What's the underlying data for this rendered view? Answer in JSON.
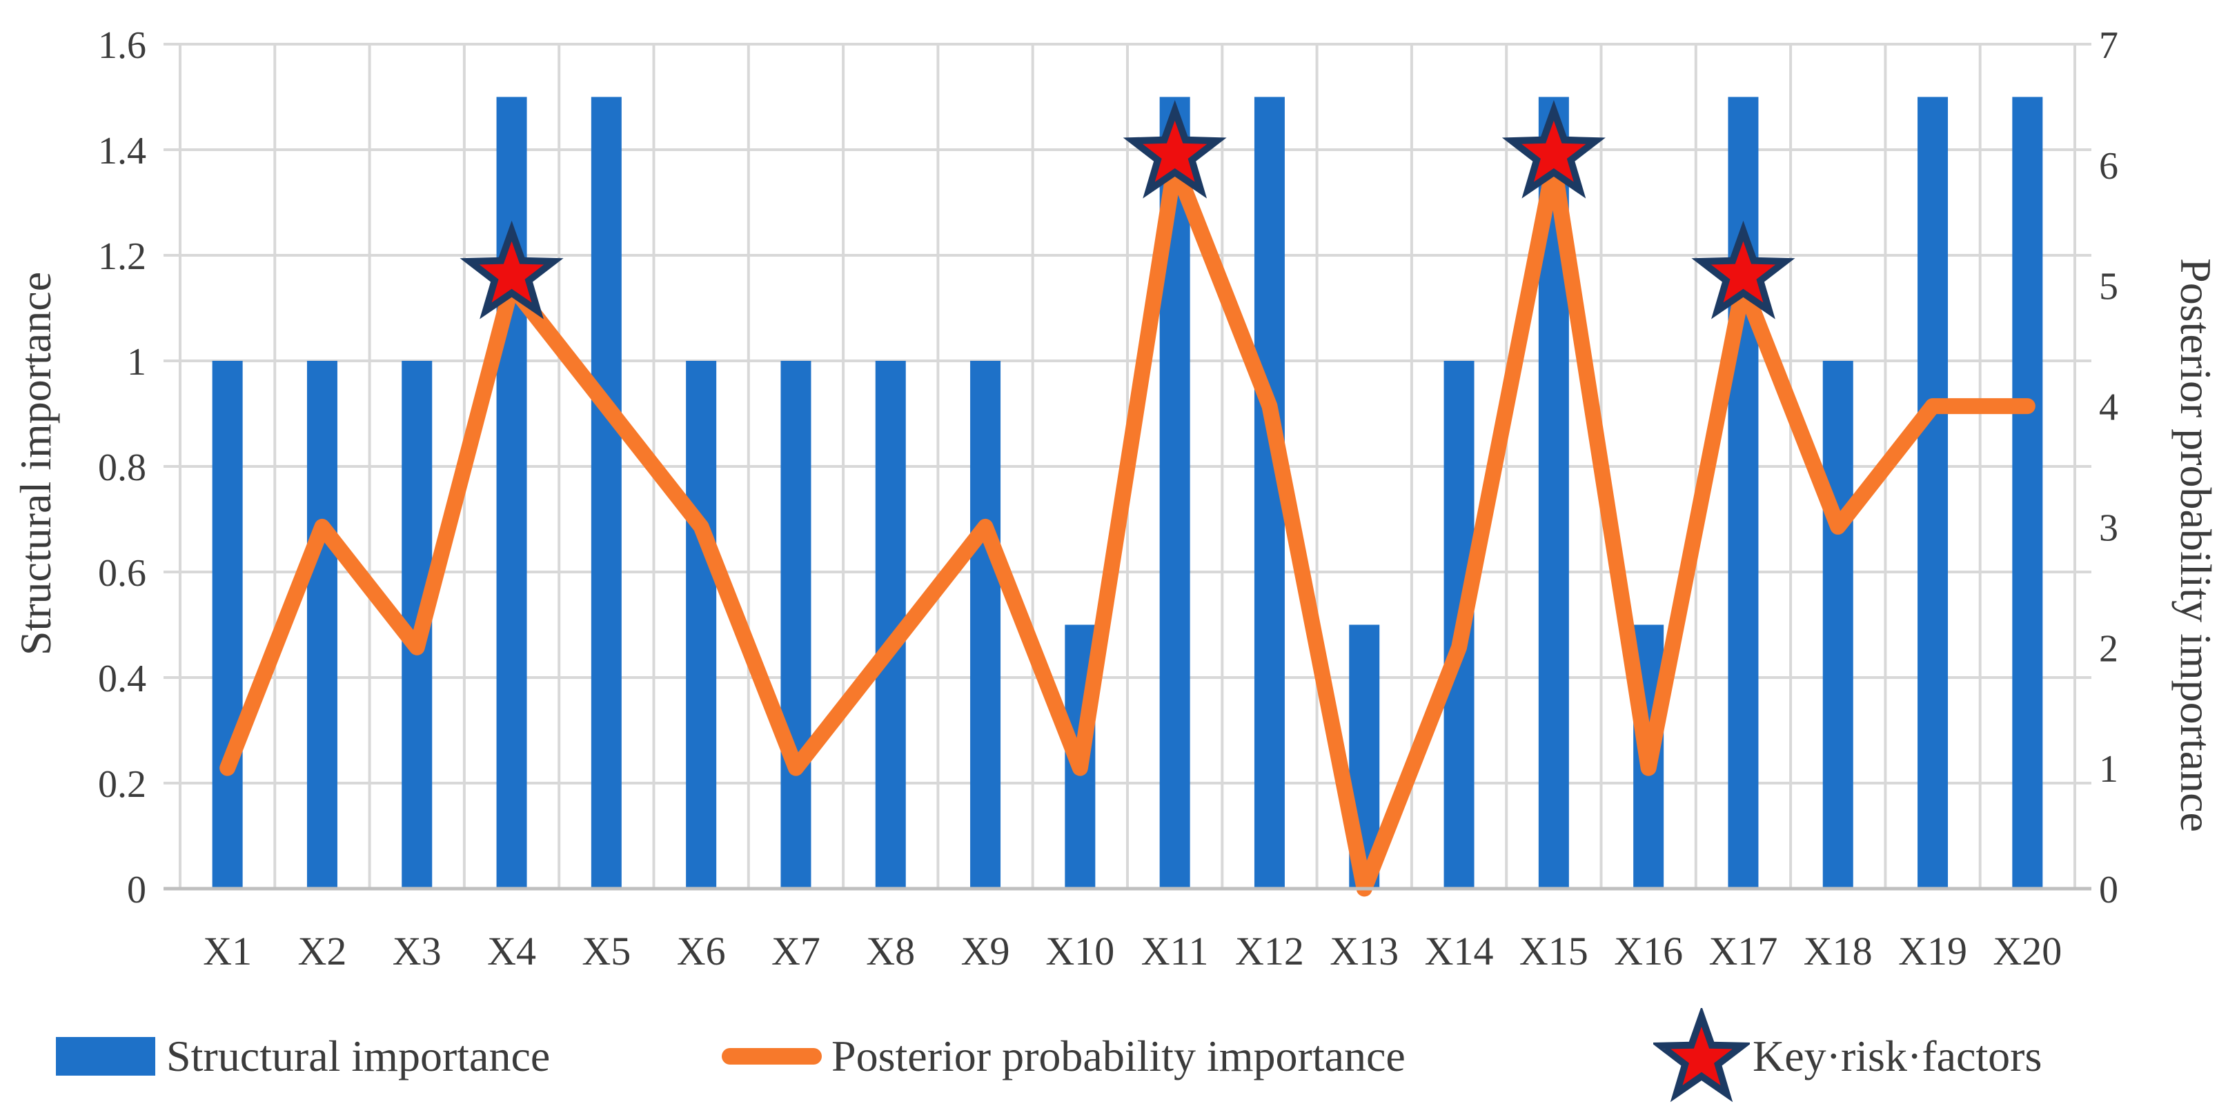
{
  "chart_data": {
    "type": "bar-line-combo",
    "categories": [
      "X1",
      "X2",
      "X3",
      "X4",
      "X5",
      "X6",
      "X7",
      "X8",
      "X9",
      "X10",
      "X11",
      "X12",
      "X13",
      "X14",
      "X15",
      "X16",
      "X17",
      "X18",
      "X19",
      "X20"
    ],
    "series": [
      {
        "name": "Structural importance",
        "type": "bar",
        "axis": "left",
        "color": "#1e71c8",
        "values": [
          1,
          1,
          1,
          1.5,
          1.5,
          1,
          1,
          1,
          1,
          0.5,
          1.5,
          1.5,
          0.5,
          1,
          1.5,
          0.5,
          1.5,
          1,
          1.5,
          1.5
        ]
      },
      {
        "name": "Posterior probability importance",
        "type": "line",
        "axis": "right",
        "color": "#f7792b",
        "values": [
          1,
          3,
          2,
          5,
          4,
          3,
          1,
          2,
          3,
          1,
          6,
          4,
          0,
          2,
          6,
          1,
          5,
          3,
          4,
          4
        ]
      },
      {
        "name": "Key·risk·factors",
        "type": "star-marker",
        "axis": "right",
        "fill_color": "#ee0e0e",
        "outline_color": "#1c3a63",
        "points": [
          {
            "category": "X4",
            "value": 5
          },
          {
            "category": "X11",
            "value": 6
          },
          {
            "category": "X15",
            "value": 6
          },
          {
            "category": "X17",
            "value": 5
          }
        ]
      }
    ],
    "left_axis": {
      "title": "Structural importance",
      "min": 0,
      "max": 1.6,
      "step": 0.2,
      "tick_labels": [
        "0",
        "0.2",
        "0.4",
        "0.6",
        "0.8",
        "1",
        "1.2",
        "1.4",
        "1.6"
      ]
    },
    "right_axis": {
      "title": "Posterior probability importance",
      "min": 0,
      "max": 7,
      "step": 1,
      "tick_labels": [
        "0",
        "1",
        "2",
        "3",
        "4",
        "5",
        "6",
        "7"
      ]
    },
    "grid": {
      "horizontal": true,
      "vertical": true,
      "color": "#d8d8d8",
      "axis_line_color": "#bfbfbf"
    },
    "legend": {
      "position": "bottom",
      "items": [
        {
          "label": "Structural importance",
          "swatch": "bar"
        },
        {
          "label": "Posterior probability importance",
          "swatch": "line"
        },
        {
          "label": "Key·risk·factors",
          "swatch": "star"
        }
      ]
    },
    "text_color": "#3b3b3b"
  }
}
